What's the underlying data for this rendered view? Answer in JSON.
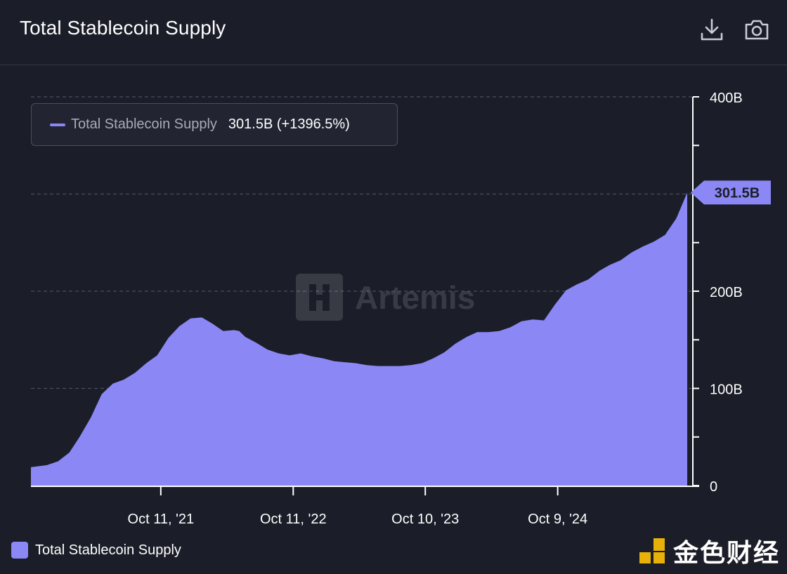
{
  "header": {
    "title": "Total Stablecoin Supply",
    "icons": [
      "download-icon",
      "camera-icon"
    ]
  },
  "tooltip": {
    "series_name": "Total Stablecoin Supply",
    "value_text": "301.5B (+1396.5%)"
  },
  "last_value_label": "301.5B",
  "watermark": "Artemis",
  "legend": {
    "label": "Total Stablecoin Supply"
  },
  "brand": {
    "text": "金色财经"
  },
  "colors": {
    "background": "#1b1d28",
    "series": "#8b87f5",
    "grid": "#4a4e5e",
    "axis": "#ffffff"
  },
  "chart_data": {
    "type": "area",
    "title": "Total Stablecoin Supply",
    "xlabel": "",
    "ylabel": "",
    "ylim": [
      0,
      400
    ],
    "y_unit": "B",
    "y_ticks": [
      0,
      100,
      200,
      300,
      400
    ],
    "y_tick_labels": [
      "0",
      "100B",
      "200B",
      "",
      "400B"
    ],
    "y_labeled_ticks": [
      0,
      100,
      200,
      400
    ],
    "x_tick_labels": [
      "Oct 11, '21",
      "Oct 11, '22",
      "Oct 10, '23",
      "Oct 9, '24"
    ],
    "x_tick_dates": [
      "2021-10-11",
      "2022-10-11",
      "2023-10-10",
      "2024-10-09"
    ],
    "grid": true,
    "series": [
      {
        "name": "Total Stablecoin Supply",
        "color": "#8b87f5",
        "x": [
          "2020-10-18",
          "2020-12-01",
          "2021-01-01",
          "2021-02-01",
          "2021-03-01",
          "2021-04-01",
          "2021-05-01",
          "2021-06-01",
          "2021-07-01",
          "2021-08-01",
          "2021-09-01",
          "2021-10-01",
          "2021-11-01",
          "2021-12-01",
          "2022-01-01",
          "2022-02-01",
          "2022-03-01",
          "2022-04-01",
          "2022-05-01",
          "2022-05-15",
          "2022-06-01",
          "2022-07-01",
          "2022-08-01",
          "2022-09-01",
          "2022-10-01",
          "2022-11-01",
          "2022-12-01",
          "2023-01-01",
          "2023-02-01",
          "2023-03-01",
          "2023-04-01",
          "2023-05-01",
          "2023-06-01",
          "2023-07-01",
          "2023-08-01",
          "2023-09-01",
          "2023-10-01",
          "2023-11-01",
          "2023-12-01",
          "2024-01-01",
          "2024-02-01",
          "2024-03-01",
          "2024-04-01",
          "2024-05-01",
          "2024-06-01",
          "2024-07-01",
          "2024-08-01",
          "2024-09-01",
          "2024-10-01",
          "2024-11-01",
          "2024-12-01",
          "2025-01-01",
          "2025-02-01",
          "2025-03-01",
          "2025-04-01",
          "2025-05-01",
          "2025-06-01",
          "2025-07-01",
          "2025-08-01",
          "2025-09-01",
          "2025-10-01"
        ],
        "values": [
          19,
          21,
          25,
          34,
          50,
          70,
          94,
          105,
          109,
          116,
          126,
          134,
          152,
          164,
          172,
          173,
          167,
          159,
          160,
          159,
          153,
          147,
          140,
          136,
          134,
          136,
          133,
          131,
          128,
          127,
          126,
          124,
          123,
          123,
          123,
          124,
          126,
          131,
          137,
          146,
          153,
          158,
          158,
          159,
          163,
          169,
          171,
          170,
          186,
          201,
          207,
          212,
          221,
          227,
          232,
          240,
          246,
          251,
          258,
          275,
          301.5
        ]
      }
    ]
  }
}
